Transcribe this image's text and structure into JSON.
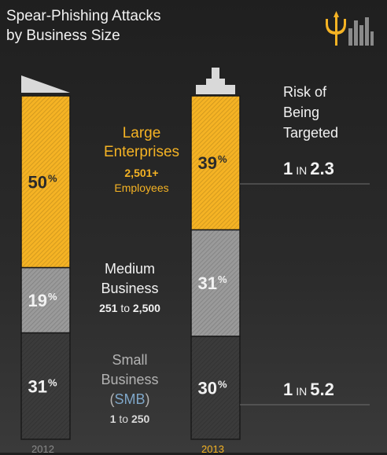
{
  "title_line1": "Spear-Phishing Attacks",
  "title_line2": "by Business Size",
  "logo_icon": "trident-city-skyline-icon",
  "colors": {
    "large": "#f5b324",
    "medium": "#9a9a9a",
    "small": "#3b3b3b",
    "accent": "#f5b324"
  },
  "segments": {
    "large": {
      "name_line1": "Large",
      "name_line2": "Enterprises",
      "count": "2,501+",
      "unit": "Employees"
    },
    "medium": {
      "name_line1": "Medium",
      "name_line2": "Business",
      "range_start": "251",
      "range_to": "to",
      "range_end": "2,500"
    },
    "small": {
      "name_line1": "Small",
      "name_line2": "Business",
      "abbr_open": "(",
      "abbr": "SMB",
      "abbr_close": ")",
      "range_start": "1",
      "range_to": "to",
      "range_end": "250"
    }
  },
  "risk": {
    "heading_line1": "Risk of",
    "heading_line2": "Being",
    "heading_line3": "Targeted",
    "large": {
      "one": "1",
      "in": "IN",
      "value": "2.3"
    },
    "small": {
      "one": "1",
      "in": "IN",
      "value": "5.2"
    }
  },
  "chart_data": {
    "type": "bar",
    "stacked": true,
    "categories": [
      "2012",
      "2013"
    ],
    "series": [
      {
        "name": "Small Business (SMB)",
        "values": [
          31,
          30
        ]
      },
      {
        "name": "Medium Business",
        "values": [
          19,
          31
        ]
      },
      {
        "name": "Large Enterprises",
        "values": [
          50,
          39
        ]
      }
    ],
    "value_suffix": "%",
    "ylim": [
      0,
      100
    ]
  }
}
